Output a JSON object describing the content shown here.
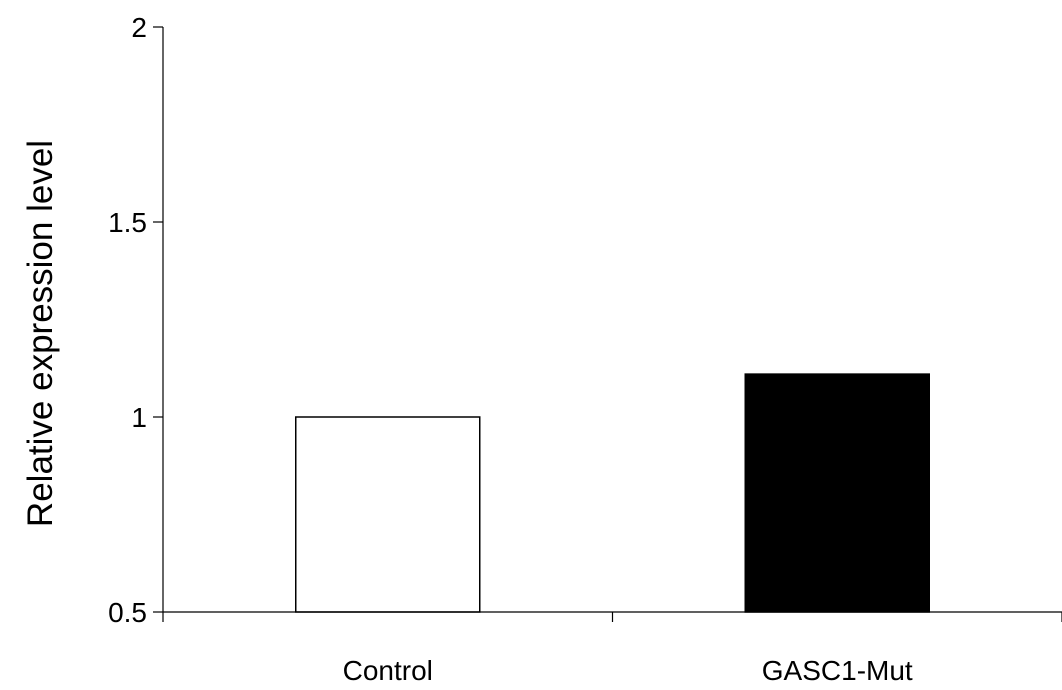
{
  "chart_data": {
    "type": "bar",
    "categories": [
      "Control",
      "GASC1-Mut"
    ],
    "values": [
      1.0,
      1.11
    ],
    "bar_fill_colors": [
      "#ffffff",
      "#000000"
    ],
    "bar_stroke_color": "#000000",
    "title": "",
    "xlabel": "",
    "ylabel": "Relative expression level",
    "ylim": [
      0.5,
      2
    ],
    "yticks": [
      0.5,
      1,
      1.5,
      2
    ],
    "ytick_labels": [
      "0.5",
      "1",
      "1.5",
      "2"
    ],
    "grid": false,
    "legend": "none"
  }
}
